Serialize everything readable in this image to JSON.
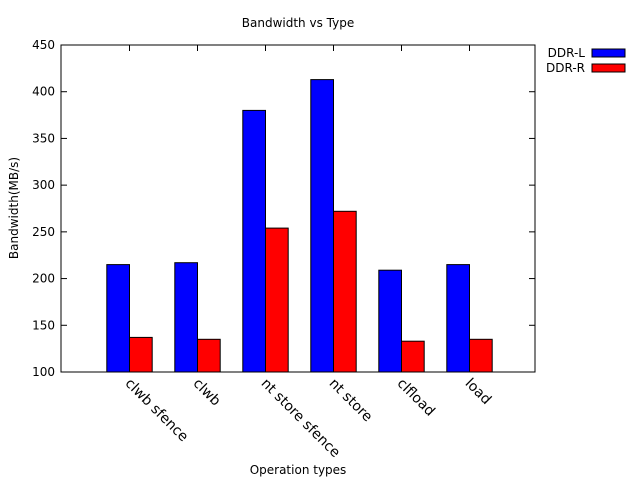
{
  "chart_data": {
    "type": "bar",
    "title": "Bandwidth vs Type",
    "xlabel": "Operation types",
    "ylabel": "Bandwidth(MB/s)",
    "ylim": [
      100,
      450
    ],
    "yticks": [
      100,
      150,
      200,
      250,
      300,
      350,
      400,
      450
    ],
    "categories": [
      "clwb sfence",
      "clwb",
      "nt store sfence",
      "nt store",
      "clfload",
      "load"
    ],
    "series": [
      {
        "name": "DDR-L",
        "color": "#0000ff",
        "values": [
          215,
          217,
          380,
          413,
          209,
          215
        ]
      },
      {
        "name": "DDR-R",
        "color": "#ff0000",
        "values": [
          137,
          135,
          254,
          272,
          133,
          135
        ]
      }
    ],
    "legend_position": "top-right, outside plot",
    "grid": false
  }
}
